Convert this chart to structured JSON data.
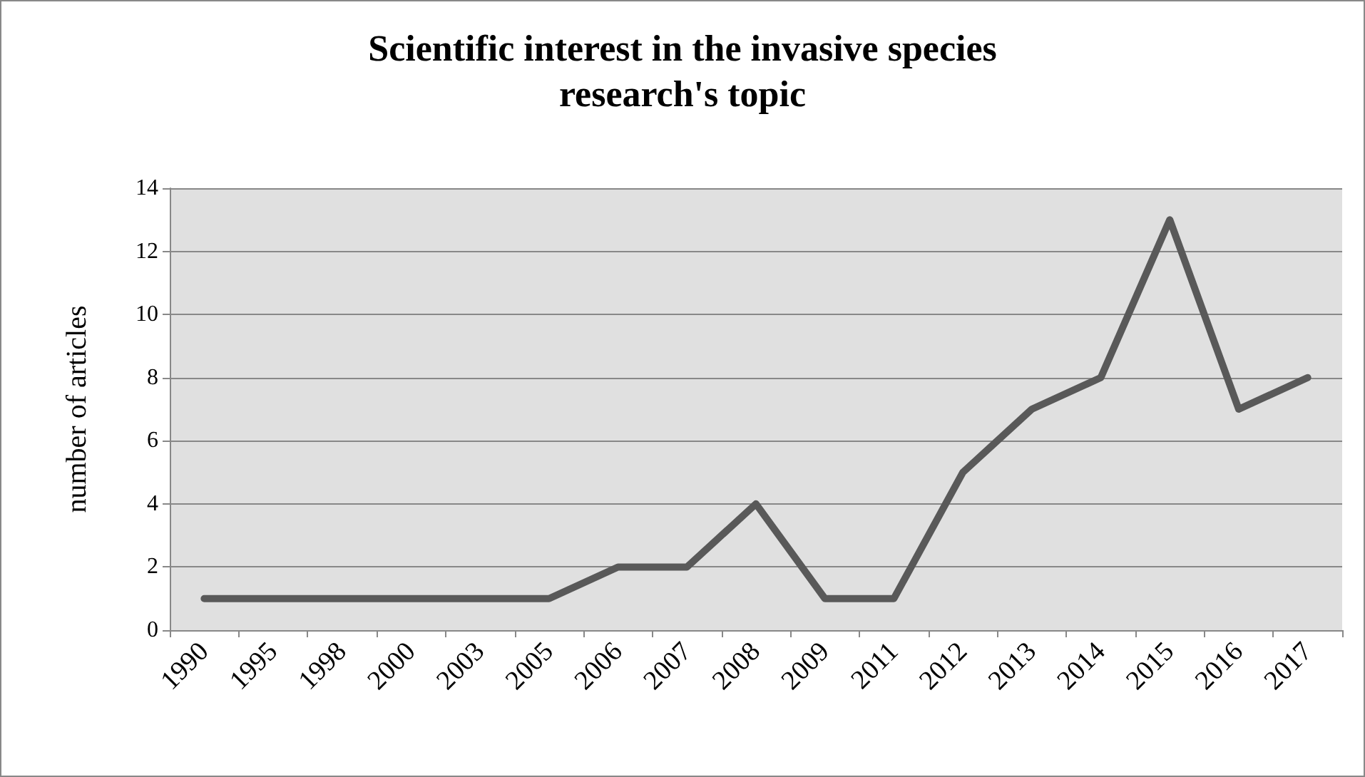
{
  "chart_data": {
    "type": "line",
    "title": "Scientific interest in the invasive species\nresearch's topic",
    "ylabel": "number of articles",
    "categories": [
      "1990",
      "1995",
      "1998",
      "2000",
      "2003",
      "2005",
      "2006",
      "2007",
      "2008",
      "2009",
      "2011",
      "2012",
      "2013",
      "2014",
      "2015",
      "2016",
      "2017"
    ],
    "series": [
      {
        "color": "#595959",
        "values": [
          1,
          1,
          1,
          1,
          1,
          1,
          2,
          2,
          4,
          1,
          1,
          5,
          7,
          8,
          13,
          7,
          8
        ]
      }
    ],
    "ylim": [
      0,
      14
    ],
    "yticks": [
      0,
      2,
      4,
      6,
      8,
      10,
      12,
      14
    ],
    "grid": "y",
    "marker": "none",
    "line_style": "solid"
  }
}
